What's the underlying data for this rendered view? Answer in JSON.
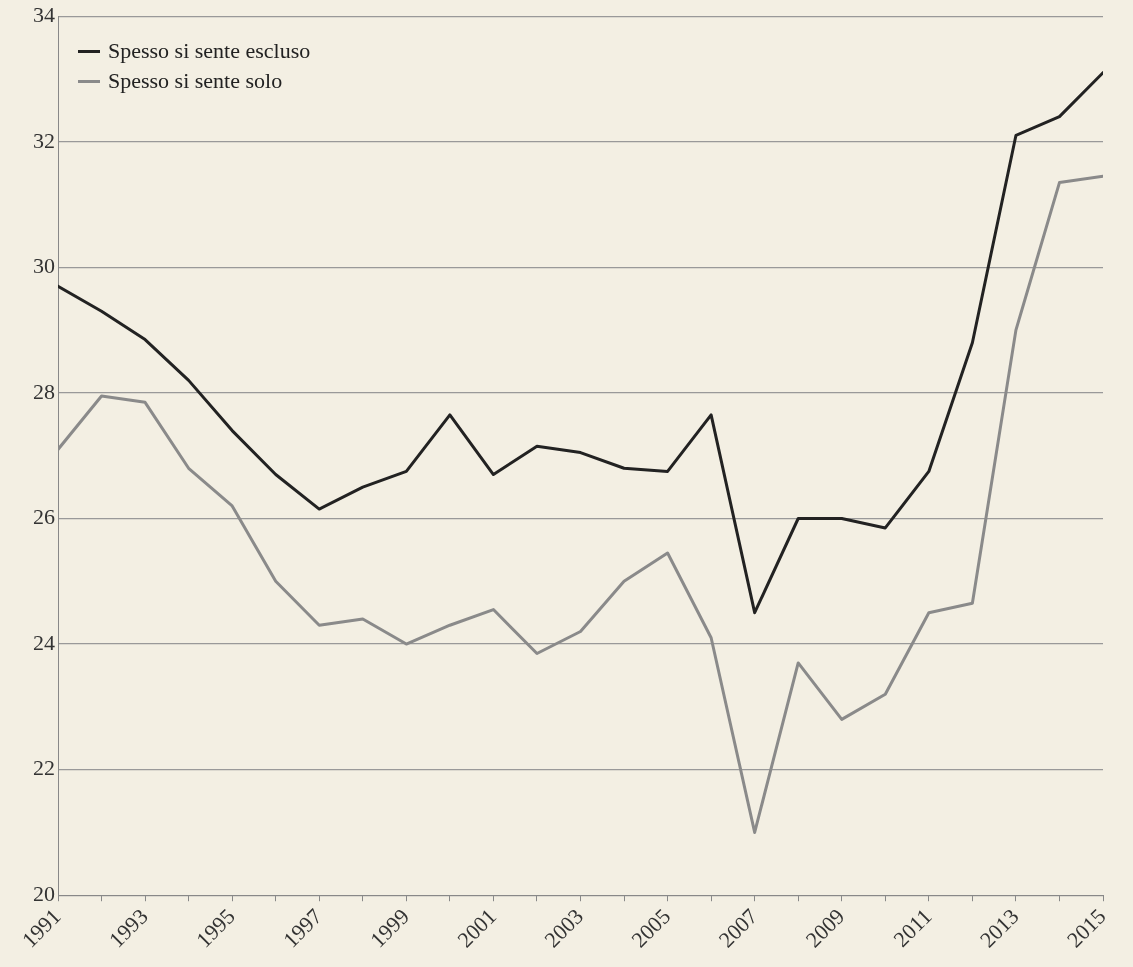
{
  "chart_data": {
    "type": "line",
    "x": [
      1991,
      1992,
      1993,
      1994,
      1995,
      1996,
      1997,
      1998,
      1999,
      2000,
      2001,
      2002,
      2003,
      2004,
      2005,
      2006,
      2007,
      2008,
      2009,
      2010,
      2011,
      2012,
      2013,
      2014,
      2015
    ],
    "series": [
      {
        "name": "Spesso si sente escluso",
        "color": "#222222",
        "values": [
          29.7,
          29.3,
          28.85,
          28.2,
          27.4,
          26.7,
          26.15,
          26.5,
          26.75,
          27.65,
          26.7,
          27.15,
          27.05,
          26.8,
          26.75,
          27.65,
          24.5,
          26.0,
          26.0,
          25.85,
          26.75,
          28.8,
          32.1,
          32.4,
          33.1
        ]
      },
      {
        "name": "Spesso si sente solo",
        "color": "#8a8a8a",
        "values": [
          27.1,
          27.95,
          27.85,
          26.8,
          26.2,
          25.0,
          24.3,
          24.4,
          24.0,
          24.3,
          24.55,
          23.85,
          24.2,
          25.0,
          25.45,
          24.1,
          21.0,
          23.7,
          22.8,
          23.2,
          24.5,
          24.65,
          29.0,
          31.35,
          31.45
        ]
      }
    ],
    "xlim": [
      1991,
      2015
    ],
    "xticks": [
      1991,
      {
        "value": 1992,
        "label": null
      },
      1993,
      {
        "value": 1994,
        "label": null
      },
      1995,
      {
        "value": 1996,
        "label": null
      },
      1997,
      {
        "value": 1998,
        "label": null
      },
      1999,
      {
        "value": 2000,
        "label": null
      },
      2001,
      {
        "value": 2002,
        "label": null
      },
      2003,
      {
        "value": 2004,
        "label": null
      },
      2005,
      {
        "value": 2006,
        "label": null
      },
      2007,
      {
        "value": 2008,
        "label": null
      },
      2009,
      {
        "value": 2010,
        "label": null
      },
      2011,
      {
        "value": 2012,
        "label": null
      },
      2013,
      {
        "value": 2014,
        "label": null
      },
      2015
    ],
    "ylim": [
      20,
      34
    ],
    "yticks": [
      20,
      22,
      24,
      26,
      28,
      30,
      32,
      34
    ],
    "grid": "y",
    "legend": "top left",
    "marker": "none",
    "line_style": "solid"
  }
}
